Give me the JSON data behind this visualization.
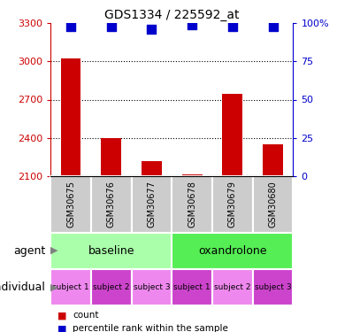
{
  "title": "GDS1334 / 225592_at",
  "samples": [
    "GSM30675",
    "GSM30676",
    "GSM30677",
    "GSM30678",
    "GSM30679",
    "GSM30680"
  ],
  "counts": [
    3020,
    2395,
    2215,
    2115,
    2745,
    2350
  ],
  "percentile_ranks": [
    98,
    98,
    96,
    99,
    98,
    98
  ],
  "ylim": [
    2100,
    3300
  ],
  "yticks": [
    2100,
    2400,
    2700,
    3000,
    3300
  ],
  "right_yticks": [
    0,
    25,
    50,
    75,
    100
  ],
  "right_ylabels": [
    "0",
    "25",
    "50",
    "75",
    "100%"
  ],
  "left_color": "#cc0000",
  "right_color": "#0000cc",
  "bar_color": "#cc0000",
  "dot_color": "#0000cc",
  "agent_baseline_color": "#aaffaa",
  "agent_oxandrolone_color": "#55ee55",
  "agent_groups": [
    {
      "label": "baseline",
      "start": 0,
      "end": 3,
      "color": "#aaffaa"
    },
    {
      "label": "oxandrolone",
      "start": 3,
      "end": 6,
      "color": "#55ee55"
    }
  ],
  "indiv_labels": [
    "subject 1",
    "subject 2",
    "subject 3",
    "subject 1",
    "subject 2",
    "subject 3"
  ],
  "indiv_colors": [
    "#ee88ee",
    "#cc44cc",
    "#ee88ee",
    "#cc44cc",
    "#ee88ee",
    "#cc44cc"
  ],
  "sample_box_color": "#cccccc",
  "gridlines": [
    2400,
    2700,
    3000
  ],
  "bar_width": 0.5,
  "dot_size": 60,
  "legend_bar_color": "#cc0000",
  "legend_dot_color": "#0000cc"
}
